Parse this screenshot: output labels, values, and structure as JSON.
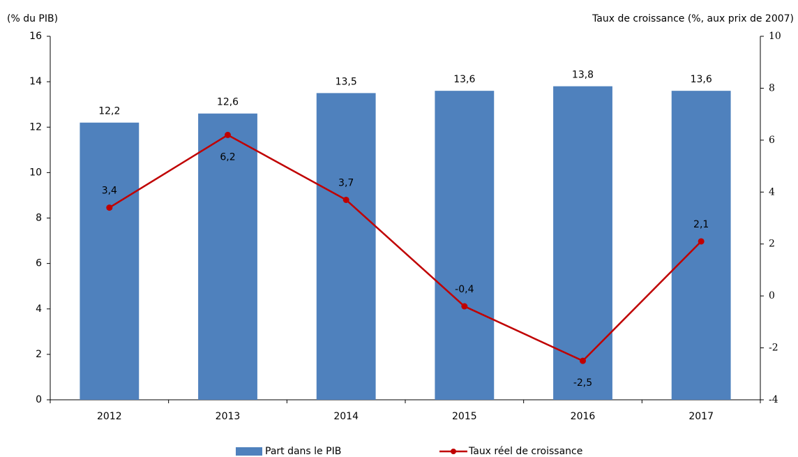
{
  "chart_data": {
    "type": "bar",
    "y_label": "(% du PIB)",
    "y2_label": "Taux de croissance (%, aux prix de 2007)",
    "categories": [
      "2012",
      "2013",
      "2014",
      "2015",
      "2016",
      "2017"
    ],
    "series": [
      {
        "name": "Part dans le PIB",
        "type": "bar",
        "color": "#4f81bd",
        "values": [
          12.2,
          12.6,
          13.5,
          13.6,
          13.8,
          13.6
        ],
        "value_labels": [
          "12,2",
          "12,6",
          "13,5",
          "13,6",
          "13,8",
          "13,6"
        ]
      },
      {
        "name": "Taux réel de croissance",
        "type": "line",
        "axis": "y2",
        "color": "#c00000",
        "values": [
          3.4,
          6.2,
          3.7,
          -0.4,
          -2.5,
          2.1
        ],
        "value_labels": [
          "3,4",
          "6,2",
          "3,7",
          "-0,4",
          "-2,5",
          "2,1"
        ]
      }
    ],
    "ylim": [
      0,
      16
    ],
    "yticks": [
      0,
      2,
      4,
      6,
      8,
      10,
      12,
      14,
      16
    ],
    "y2lim": [
      -4,
      10
    ],
    "y2ticks": [
      -4,
      -2,
      0,
      2,
      4,
      6,
      8,
      10
    ],
    "legend": "bottom"
  }
}
